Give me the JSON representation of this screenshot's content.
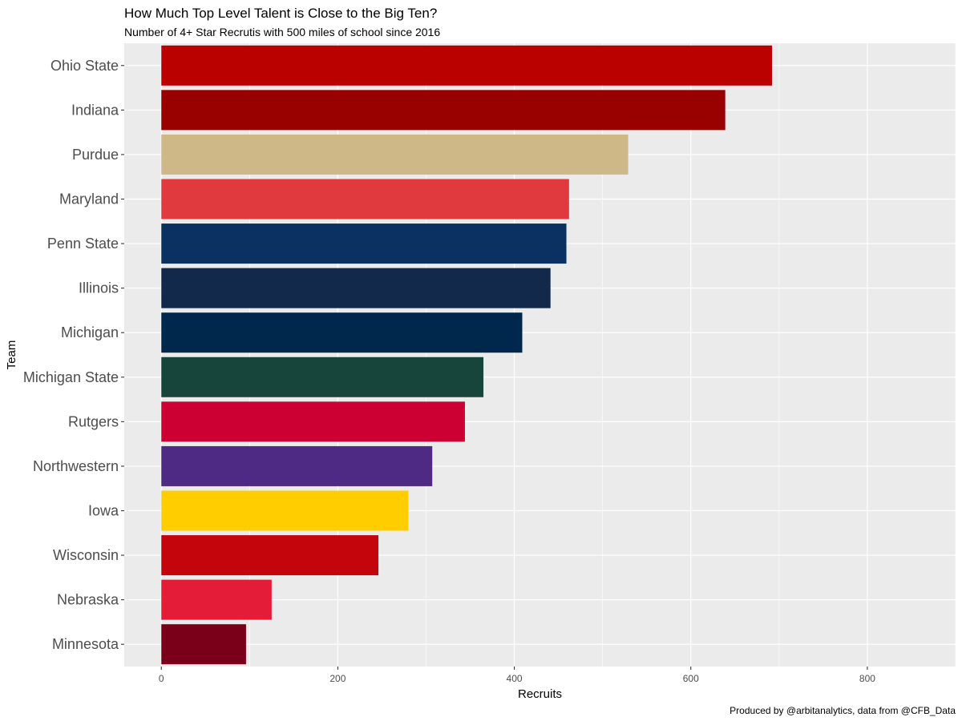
{
  "chart_data": {
    "type": "bar",
    "orientation": "horizontal",
    "title": "How Much Top Level Talent is Close to the Big Ten?",
    "subtitle": "Number of 4+ Star Recrutis with 500 miles of school since 2016",
    "caption": "Produced by @arbitanalytics, data from @CFB_Data",
    "xlabel": "Recruits",
    "ylabel": "Team",
    "xlim": [
      -42,
      900
    ],
    "x_ticks": [
      0,
      200,
      400,
      600,
      800
    ],
    "x_tick_labels": [
      "0",
      "200",
      "400",
      "600",
      "800"
    ],
    "grid": true,
    "categories": [
      "Ohio State",
      "Indiana",
      "Purdue",
      "Maryland",
      "Penn State",
      "Illinois",
      "Michigan",
      "Michigan State",
      "Rutgers",
      "Northwestern",
      "Iowa",
      "Wisconsin",
      "Nebraska",
      "Minnesota"
    ],
    "values": [
      692,
      639,
      529,
      462,
      459,
      441,
      409,
      365,
      344,
      307,
      280,
      246,
      125,
      96
    ],
    "colors": [
      "#BB0000",
      "#990000",
      "#CEB888",
      "#E03A3E",
      "#0A3161",
      "#13294B",
      "#00274C",
      "#18453B",
      "#CC0033",
      "#4E2A84",
      "#FFCD00",
      "#C5050C",
      "#E41C38",
      "#7A0019"
    ],
    "panel_background": "#EBEBEB",
    "grid_color": "#FFFFFF"
  }
}
